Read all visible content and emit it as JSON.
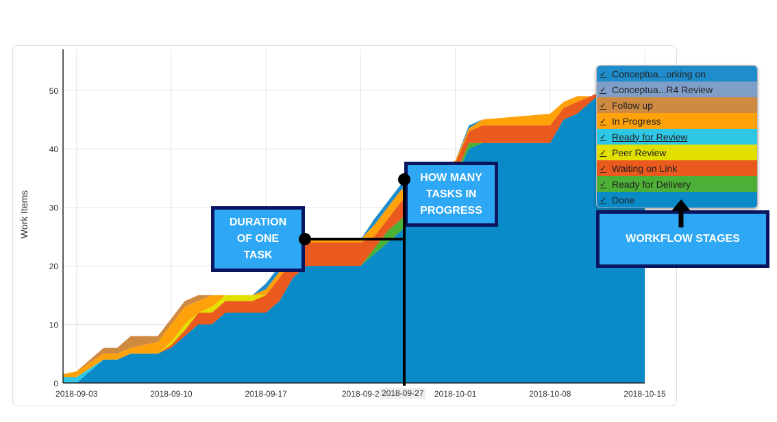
{
  "chart_data": {
    "type": "area",
    "stacked": true,
    "title": "",
    "xlabel": "",
    "ylabel": "Work Items",
    "ylim": [
      0,
      57
    ],
    "yticks": [
      0,
      10,
      20,
      30,
      40,
      50
    ],
    "xticks": [
      "2018-09-03",
      "2018-09-10",
      "2018-09-17",
      "2018-09-24",
      "2018-10-01",
      "2018-10-08",
      "2018-10-15"
    ],
    "xtick_labels": [
      "2018-09-03",
      "2018-09-10",
      "2018-09-17",
      "2018-09-2",
      "2018-10-01",
      "2018-10-08",
      "2018-10-15"
    ],
    "hover_x_label": "2018-09-27",
    "grid": true,
    "legend_position": "top-right",
    "dates": [
      "2018-09-02",
      "2018-09-03",
      "2018-09-05",
      "2018-09-06",
      "2018-09-07",
      "2018-09-09",
      "2018-09-10",
      "2018-09-11",
      "2018-09-12",
      "2018-09-13",
      "2018-09-14",
      "2018-09-16",
      "2018-09-17",
      "2018-09-18",
      "2018-09-19",
      "2018-09-20",
      "2018-09-24",
      "2018-09-25",
      "2018-09-26",
      "2018-09-27",
      "2018-09-28",
      "2018-09-30",
      "2018-10-01",
      "2018-10-02",
      "2018-10-03",
      "2018-10-08",
      "2018-10-09",
      "2018-10-10",
      "2018-10-11",
      "2018-10-12",
      "2018-10-15"
    ],
    "series": [
      {
        "name": "Done",
        "color": "#0a8ac6",
        "values": [
          0,
          0,
          4,
          4,
          5,
          5,
          6,
          8,
          10,
          10,
          12,
          12,
          12,
          14,
          18,
          20,
          20,
          22,
          24,
          26,
          29,
          33,
          35,
          40,
          41,
          41,
          45,
          46,
          48,
          50,
          52
        ]
      },
      {
        "name": "Ready for Delivery",
        "color": "#4caf36",
        "values": [
          0,
          0,
          0,
          0,
          0,
          0,
          0,
          0,
          0,
          0,
          0,
          0,
          0,
          0,
          0,
          0,
          0,
          1,
          2,
          2,
          1,
          1,
          0.5,
          1,
          0,
          0,
          0,
          0,
          0,
          0,
          0
        ]
      },
      {
        "name": "Waiting on Link",
        "color": "#ea5a1e",
        "values": [
          0,
          0,
          0,
          0,
          0,
          0,
          0.5,
          1,
          2,
          2,
          2,
          2,
          3,
          4,
          3,
          4,
          4,
          2,
          2,
          3,
          3,
          2,
          2,
          2,
          3,
          3,
          2,
          2,
          1,
          0,
          0
        ]
      },
      {
        "name": "Peer Review",
        "color": "#e2e000",
        "values": [
          0,
          0,
          0,
          0,
          0,
          0,
          0.5,
          1,
          0,
          1,
          1,
          1,
          0,
          0,
          0,
          0,
          0,
          0,
          0,
          0,
          0,
          0,
          0,
          0,
          0,
          0,
          0,
          0,
          0,
          0,
          0
        ]
      },
      {
        "name": "Ready for Review",
        "color": "#2ec7e6",
        "values": [
          1,
          1,
          0,
          0,
          0,
          0,
          0,
          0,
          0,
          0,
          0,
          0,
          0,
          0,
          0,
          0,
          0,
          0,
          0,
          0,
          0,
          0,
          0,
          0,
          0,
          0,
          0,
          0,
          0,
          0,
          0
        ]
      },
      {
        "name": "In Progress",
        "color": "#ffa20a",
        "values": [
          0.5,
          1,
          1,
          1,
          1,
          2,
          3,
          3,
          2,
          2,
          0,
          0,
          1,
          1,
          1,
          0.5,
          0.5,
          2,
          2,
          2,
          1,
          1,
          0.5,
          0.5,
          1,
          2,
          1,
          1,
          0,
          0,
          0
        ]
      },
      {
        "name": "Follow up",
        "color": "#cf8a42",
        "values": [
          0,
          0,
          1,
          1,
          2,
          1,
          1,
          1,
          1,
          0,
          0,
          0,
          0,
          0,
          0,
          0,
          0,
          0,
          0,
          0,
          0,
          0,
          0,
          0,
          0,
          0,
          0,
          0,
          0,
          0,
          0
        ]
      },
      {
        "name": "Conceptua...R4 Review",
        "color": "#7f9fc8",
        "values": [
          0,
          0,
          0,
          0,
          0,
          0,
          0,
          0,
          0,
          0,
          0,
          0,
          0,
          0,
          0,
          0,
          0,
          0,
          0,
          0,
          0,
          0,
          0,
          0,
          0,
          0,
          0,
          0,
          0,
          0,
          0
        ]
      },
      {
        "name": "Conceptua...orking on",
        "color": "#1f8dcc",
        "values": [
          0,
          0,
          0,
          0,
          0,
          0,
          0,
          0,
          0,
          0,
          0,
          0,
          1,
          1,
          0,
          0,
          0,
          1,
          1,
          1,
          1,
          0,
          0,
          0.5,
          0,
          0,
          0,
          0,
          0,
          0,
          0
        ]
      }
    ]
  },
  "legend": [
    {
      "label": "Conceptua...orking on",
      "color": "#1f8dcc"
    },
    {
      "label": "Conceptua...R4 Review",
      "color": "#7f9fc8"
    },
    {
      "label": "Follow up",
      "color": "#cf8a42"
    },
    {
      "label": "In Progress",
      "color": "#ffa20a"
    },
    {
      "label": "Ready for Review",
      "color": "#2ec7e6"
    },
    {
      "label": "Peer Review",
      "color": "#e2e000"
    },
    {
      "label": "Waiting on Link",
      "color": "#ea5a1e"
    },
    {
      "label": "Ready for Delivery",
      "color": "#4caf36"
    },
    {
      "label": "Done",
      "color": "#0a8ac6"
    }
  ],
  "check_glyph": "✓",
  "annotations": {
    "duration": "DURATION\nOF ONE\nTASK",
    "in_progress": "HOW MANY\nTASKS IN\nPROGRESS",
    "workflow": "WORKFLOW STAGES"
  }
}
